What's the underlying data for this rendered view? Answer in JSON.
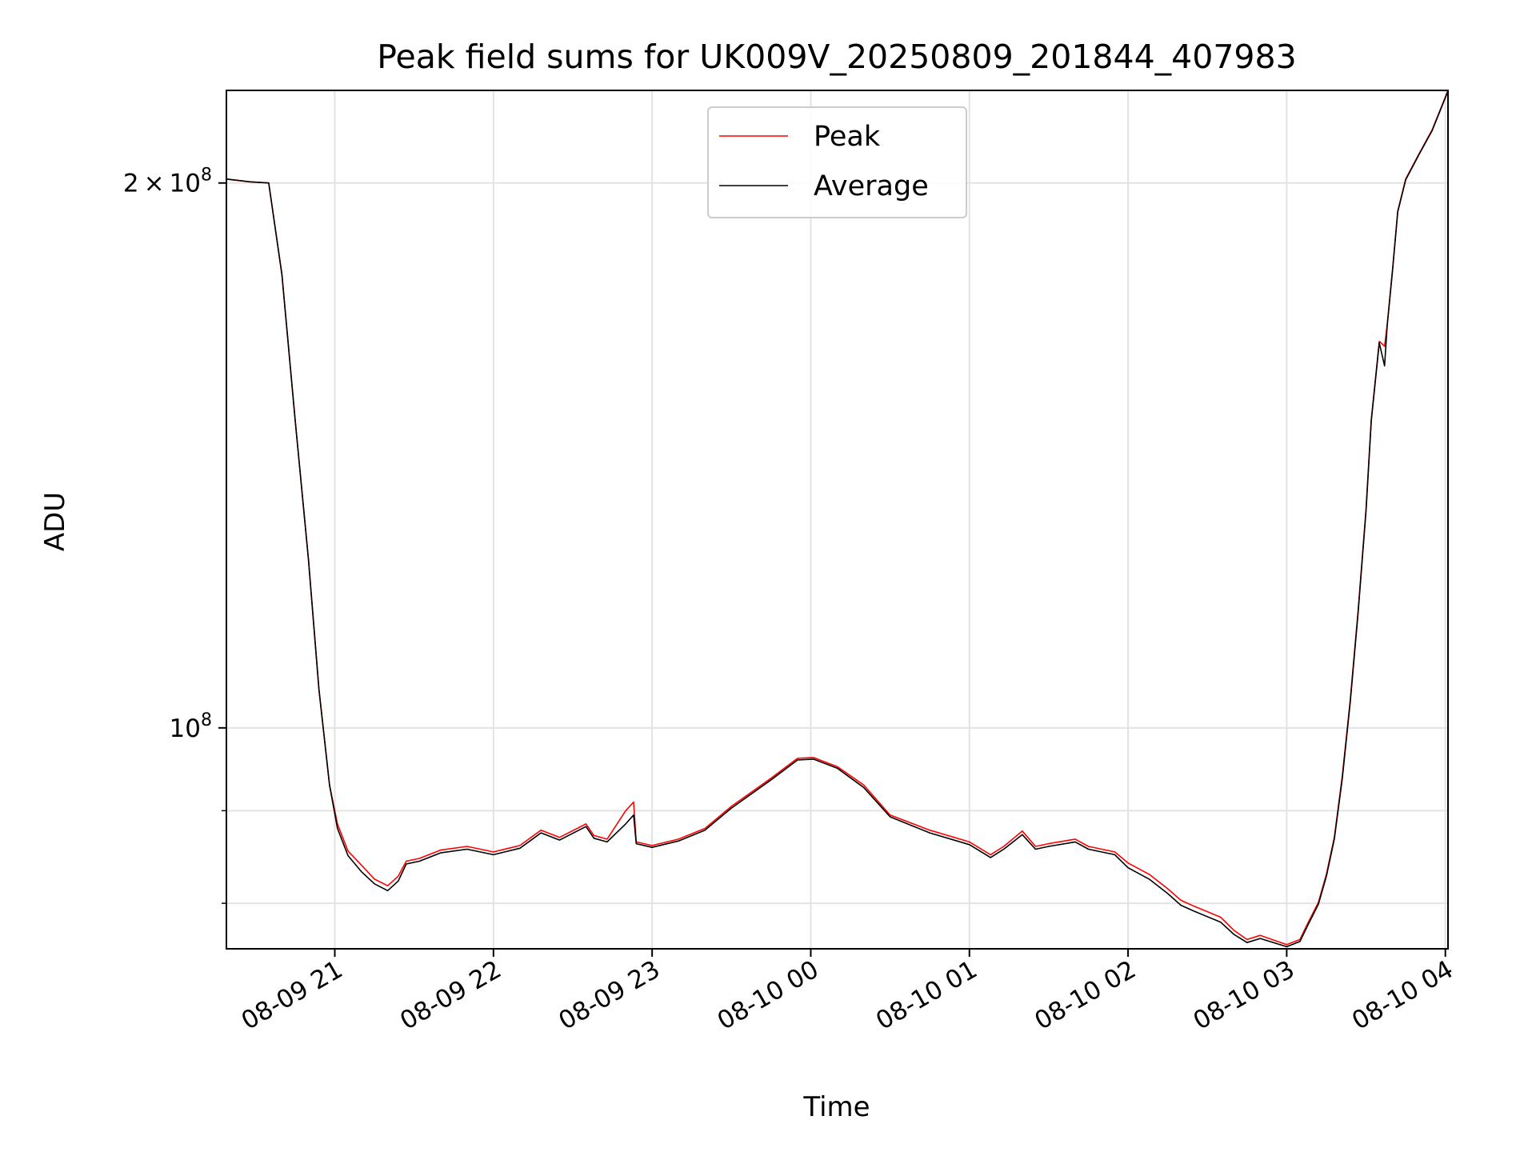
{
  "chart_data": {
    "type": "line",
    "title": "Peak field sums for UK009V_20250809_201844_407983",
    "xlabel": "Time",
    "ylabel": "ADU",
    "y_scale": "log",
    "x_range": [
      "2025-08-09 20:19",
      "2025-08-10 04:01"
    ],
    "ylim": [
      75500000,
      225000000
    ],
    "grid": true,
    "legend_position": "top-center",
    "x_ticks": [
      {
        "t": "2025-08-09 21:00",
        "label": "08-09 21"
      },
      {
        "t": "2025-08-09 22:00",
        "label": "08-09 22"
      },
      {
        "t": "2025-08-09 23:00",
        "label": "08-09 23"
      },
      {
        "t": "2025-08-10 00:00",
        "label": "08-10 00"
      },
      {
        "t": "2025-08-10 01:00",
        "label": "08-10 01"
      },
      {
        "t": "2025-08-10 02:00",
        "label": "08-10 02"
      },
      {
        "t": "2025-08-10 03:00",
        "label": "08-10 03"
      },
      {
        "t": "2025-08-10 04:00",
        "label": "08-10 04"
      }
    ],
    "y_major_ticks": [
      {
        "value": 100000000,
        "base": "10",
        "exp": "8"
      },
      {
        "value": 200000000,
        "mantissa": "2",
        "base": "10",
        "exp": "8"
      }
    ],
    "y_minor_ticks": [
      80000000,
      90000000
    ],
    "series": [
      {
        "name": "Peak",
        "color": "#ff0000",
        "x": [
          "2025-08-09 20:19",
          "2025-08-09 20:28",
          "2025-08-09 20:35",
          "2025-08-09 20:40",
          "2025-08-09 20:45",
          "2025-08-09 20:50",
          "2025-08-09 20:54",
          "2025-08-09 20:58",
          "2025-08-09 21:01",
          "2025-08-09 21:05",
          "2025-08-09 21:10",
          "2025-08-09 21:15",
          "2025-08-09 21:20",
          "2025-08-09 21:24",
          "2025-08-09 21:27",
          "2025-08-09 21:32",
          "2025-08-09 21:40",
          "2025-08-09 21:50",
          "2025-08-09 22:00",
          "2025-08-09 22:10",
          "2025-08-09 22:18",
          "2025-08-09 22:25",
          "2025-08-09 22:35",
          "2025-08-09 22:38",
          "2025-08-09 22:43",
          "2025-08-09 22:50",
          "2025-08-09 22:53",
          "2025-08-09 22:54",
          "2025-08-09 23:00",
          "2025-08-09 23:10",
          "2025-08-09 23:20",
          "2025-08-09 23:30",
          "2025-08-09 23:45",
          "2025-08-09 23:55",
          "2025-08-10 00:01",
          "2025-08-10 00:10",
          "2025-08-10 00:20",
          "2025-08-10 00:30",
          "2025-08-10 00:45",
          "2025-08-10 01:00",
          "2025-08-10 01:08",
          "2025-08-10 01:13",
          "2025-08-10 01:20",
          "2025-08-10 01:25",
          "2025-08-10 01:30",
          "2025-08-10 01:40",
          "2025-08-10 01:45",
          "2025-08-10 01:55",
          "2025-08-10 02:00",
          "2025-08-10 02:08",
          "2025-08-10 02:15",
          "2025-08-10 02:20",
          "2025-08-10 02:25",
          "2025-08-10 02:35",
          "2025-08-10 02:40",
          "2025-08-10 02:45",
          "2025-08-10 02:50",
          "2025-08-10 03:00",
          "2025-08-10 03:05",
          "2025-08-10 03:08",
          "2025-08-10 03:12",
          "2025-08-10 03:15",
          "2025-08-10 03:18",
          "2025-08-10 03:21",
          "2025-08-10 03:24",
          "2025-08-10 03:27",
          "2025-08-10 03:30",
          "2025-08-10 03:32",
          "2025-08-10 03:35",
          "2025-08-10 03:37",
          "2025-08-10 03:38",
          "2025-08-10 03:40",
          "2025-08-10 03:42",
          "2025-08-10 03:45",
          "2025-08-10 03:50",
          "2025-08-10 03:55",
          "2025-08-10 04:01"
        ],
        "y": [
          201000000,
          200300000,
          200000000,
          178000000,
          148000000,
          124000000,
          105000000,
          93000000,
          88500000,
          85500000,
          84000000,
          82500000,
          81800000,
          82800000,
          84400000,
          84700000,
          85600000,
          86000000,
          85400000,
          86100000,
          87800000,
          87000000,
          88500000,
          87200000,
          86800000,
          90000000,
          91000000,
          86500000,
          86100000,
          86800000,
          88000000,
          90500000,
          93800000,
          96200000,
          96300000,
          95200000,
          93000000,
          89500000,
          87800000,
          86500000,
          85100000,
          86000000,
          87700000,
          86000000,
          86300000,
          86800000,
          86000000,
          85400000,
          84200000,
          83000000,
          81500000,
          80300000,
          79700000,
          78600000,
          77300000,
          76400000,
          76800000,
          75900000,
          76400000,
          78000000,
          80100000,
          83000000,
          87000000,
          94000000,
          103500000,
          116000000,
          132000000,
          148000000,
          163500000,
          162500000,
          167000000,
          179000000,
          193000000,
          201000000,
          207500000,
          214000000,
          225000000
        ]
      },
      {
        "name": "Average",
        "color": "#000000",
        "x": [
          "2025-08-09 20:19",
          "2025-08-09 20:28",
          "2025-08-09 20:35",
          "2025-08-09 20:40",
          "2025-08-09 20:45",
          "2025-08-09 20:50",
          "2025-08-09 20:54",
          "2025-08-09 20:58",
          "2025-08-09 21:01",
          "2025-08-09 21:05",
          "2025-08-09 21:10",
          "2025-08-09 21:15",
          "2025-08-09 21:20",
          "2025-08-09 21:24",
          "2025-08-09 21:27",
          "2025-08-09 21:32",
          "2025-08-09 21:40",
          "2025-08-09 21:50",
          "2025-08-09 22:00",
          "2025-08-09 22:10",
          "2025-08-09 22:18",
          "2025-08-09 22:25",
          "2025-08-09 22:35",
          "2025-08-09 22:38",
          "2025-08-09 22:43",
          "2025-08-09 22:50",
          "2025-08-09 22:53",
          "2025-08-09 22:54",
          "2025-08-09 23:00",
          "2025-08-09 23:10",
          "2025-08-09 23:20",
          "2025-08-09 23:30",
          "2025-08-09 23:45",
          "2025-08-09 23:55",
          "2025-08-10 00:01",
          "2025-08-10 00:10",
          "2025-08-10 00:20",
          "2025-08-10 00:30",
          "2025-08-10 00:45",
          "2025-08-10 01:00",
          "2025-08-10 01:08",
          "2025-08-10 01:13",
          "2025-08-10 01:20",
          "2025-08-10 01:25",
          "2025-08-10 01:30",
          "2025-08-10 01:40",
          "2025-08-10 01:45",
          "2025-08-10 01:55",
          "2025-08-10 02:00",
          "2025-08-10 02:08",
          "2025-08-10 02:15",
          "2025-08-10 02:20",
          "2025-08-10 02:25",
          "2025-08-10 02:35",
          "2025-08-10 02:40",
          "2025-08-10 02:45",
          "2025-08-10 02:50",
          "2025-08-10 03:00",
          "2025-08-10 03:05",
          "2025-08-10 03:08",
          "2025-08-10 03:12",
          "2025-08-10 03:15",
          "2025-08-10 03:18",
          "2025-08-10 03:21",
          "2025-08-10 03:24",
          "2025-08-10 03:27",
          "2025-08-10 03:30",
          "2025-08-10 03:32",
          "2025-08-10 03:35",
          "2025-08-10 03:37",
          "2025-08-10 03:38",
          "2025-08-10 03:40",
          "2025-08-10 03:42",
          "2025-08-10 03:45",
          "2025-08-10 03:50",
          "2025-08-10 03:55",
          "2025-08-10 04:01"
        ],
        "y": [
          201000000,
          200300000,
          200000000,
          178000000,
          148000000,
          124000000,
          105000000,
          93000000,
          88000000,
          85000000,
          83300000,
          82000000,
          81300000,
          82300000,
          84100000,
          84400000,
          85300000,
          85700000,
          85100000,
          85800000,
          87500000,
          86700000,
          88200000,
          86900000,
          86500000,
          88500000,
          89500000,
          86300000,
          85900000,
          86600000,
          87800000,
          90300000,
          93600000,
          96000000,
          96100000,
          95000000,
          92700000,
          89300000,
          87500000,
          86200000,
          84800000,
          85700000,
          87300000,
          85700000,
          86000000,
          86500000,
          85700000,
          85100000,
          83700000,
          82500000,
          81000000,
          79800000,
          79200000,
          78100000,
          76900000,
          76100000,
          76500000,
          75700000,
          76200000,
          77800000,
          79900000,
          82800000,
          86800000,
          93700000,
          103200000,
          115700000,
          131700000,
          147800000,
          163200000,
          158500000,
          166800000,
          178800000,
          192800000,
          200800000,
          207300000,
          213800000,
          224800000
        ]
      }
    ]
  }
}
